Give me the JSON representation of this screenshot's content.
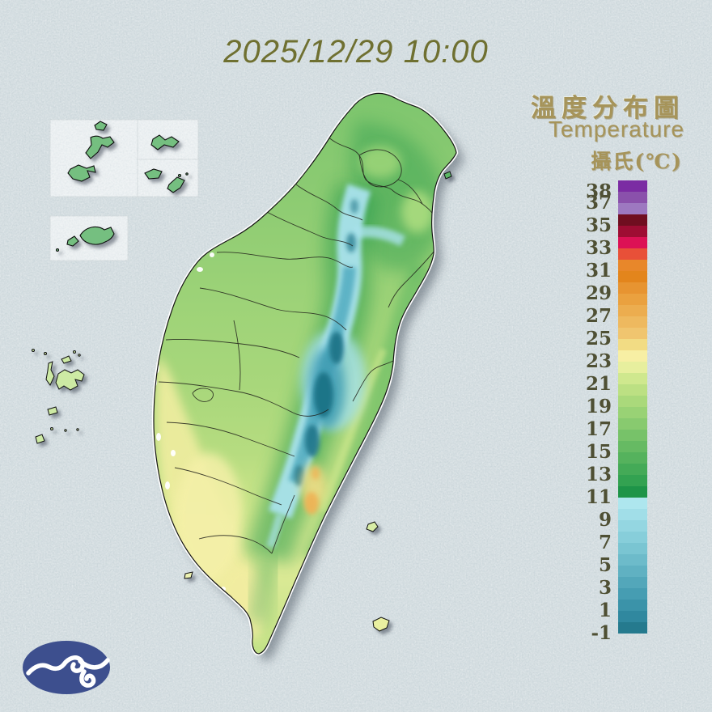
{
  "header": {
    "datetime": "2025/12/29 10:00"
  },
  "title": {
    "zh": "溫度分布圖",
    "en": "Temperature",
    "unit": "攝氏(℃)"
  },
  "legend": {
    "unit": "°C",
    "top_value": 39,
    "bottom_value": -1,
    "tick_labels": [
      38,
      37,
      35,
      33,
      31,
      29,
      27,
      25,
      23,
      21,
      19,
      17,
      15,
      13,
      11,
      9,
      7,
      5,
      3,
      1,
      -1
    ],
    "cells": [
      {
        "t": 38,
        "c": "#7b2ca3"
      },
      {
        "t": 37,
        "c": "#8a51ab"
      },
      {
        "t": 36,
        "c": "#9d78c0"
      },
      {
        "t": 35,
        "c": "#700e20"
      },
      {
        "t": 34,
        "c": "#9e0d33"
      },
      {
        "t": 33,
        "c": "#dc1155"
      },
      {
        "t": 32,
        "c": "#e85038"
      },
      {
        "t": 31,
        "c": "#e8872a"
      },
      {
        "t": 30,
        "c": "#e3851c"
      },
      {
        "t": 29,
        "c": "#e79431"
      },
      {
        "t": 28,
        "c": "#eaa13f"
      },
      {
        "t": 27,
        "c": "#ecad4f"
      },
      {
        "t": 26,
        "c": "#eeb95f"
      },
      {
        "t": 25,
        "c": "#f0c56f"
      },
      {
        "t": 24,
        "c": "#f2dc84"
      },
      {
        "t": 23,
        "c": "#f7efa4"
      },
      {
        "t": 22,
        "c": "#e7ef9e"
      },
      {
        "t": 21,
        "c": "#cfe88e"
      },
      {
        "t": 20,
        "c": "#bce083"
      },
      {
        "t": 19,
        "c": "#aad97b"
      },
      {
        "t": 18,
        "c": "#99d275"
      },
      {
        "t": 17,
        "c": "#88ca6f"
      },
      {
        "t": 16,
        "c": "#77c269"
      },
      {
        "t": 15,
        "c": "#66ba63"
      },
      {
        "t": 14,
        "c": "#55b25d"
      },
      {
        "t": 13,
        "c": "#44aa57"
      },
      {
        "t": 12,
        "c": "#33a251"
      },
      {
        "t": 11,
        "c": "#1e9448"
      },
      {
        "t": 10,
        "c": "#aee6ee"
      },
      {
        "t": 9,
        "c": "#a1dee8"
      },
      {
        "t": 8,
        "c": "#94d6e1"
      },
      {
        "t": 7,
        "c": "#87ceda"
      },
      {
        "t": 6,
        "c": "#7ac5d2"
      },
      {
        "t": 5,
        "c": "#6dbbca"
      },
      {
        "t": 4,
        "c": "#60b1c2"
      },
      {
        "t": 3,
        "c": "#53a7ba"
      },
      {
        "t": 2,
        "c": "#469db2"
      },
      {
        "t": 1,
        "c": "#3b93a9"
      },
      {
        "t": 0,
        "c": "#30889f"
      },
      {
        "t": -1,
        "c": "#257a8e"
      }
    ]
  },
  "colors": {
    "background": "#ccd7db",
    "inset_box": "#e9eef0",
    "inset_island": "#74bf80",
    "penghu_island": "#cdeaa4",
    "offshore_pale": "#e9f0a0",
    "green_island": "#d8eda6",
    "liuqiu_island": "#edf2b2",
    "guishan_island": "#5cb766",
    "coastline": "#141414",
    "coast_halo": "#ffffff",
    "island_shadow": "#44505c",
    "logo_blue": "#3d4f8e",
    "logo_swirl": "#ffffff",
    "title_gold": "#a6945a",
    "date_olive": "#6f7031",
    "tick_olive": "#4f5034"
  }
}
